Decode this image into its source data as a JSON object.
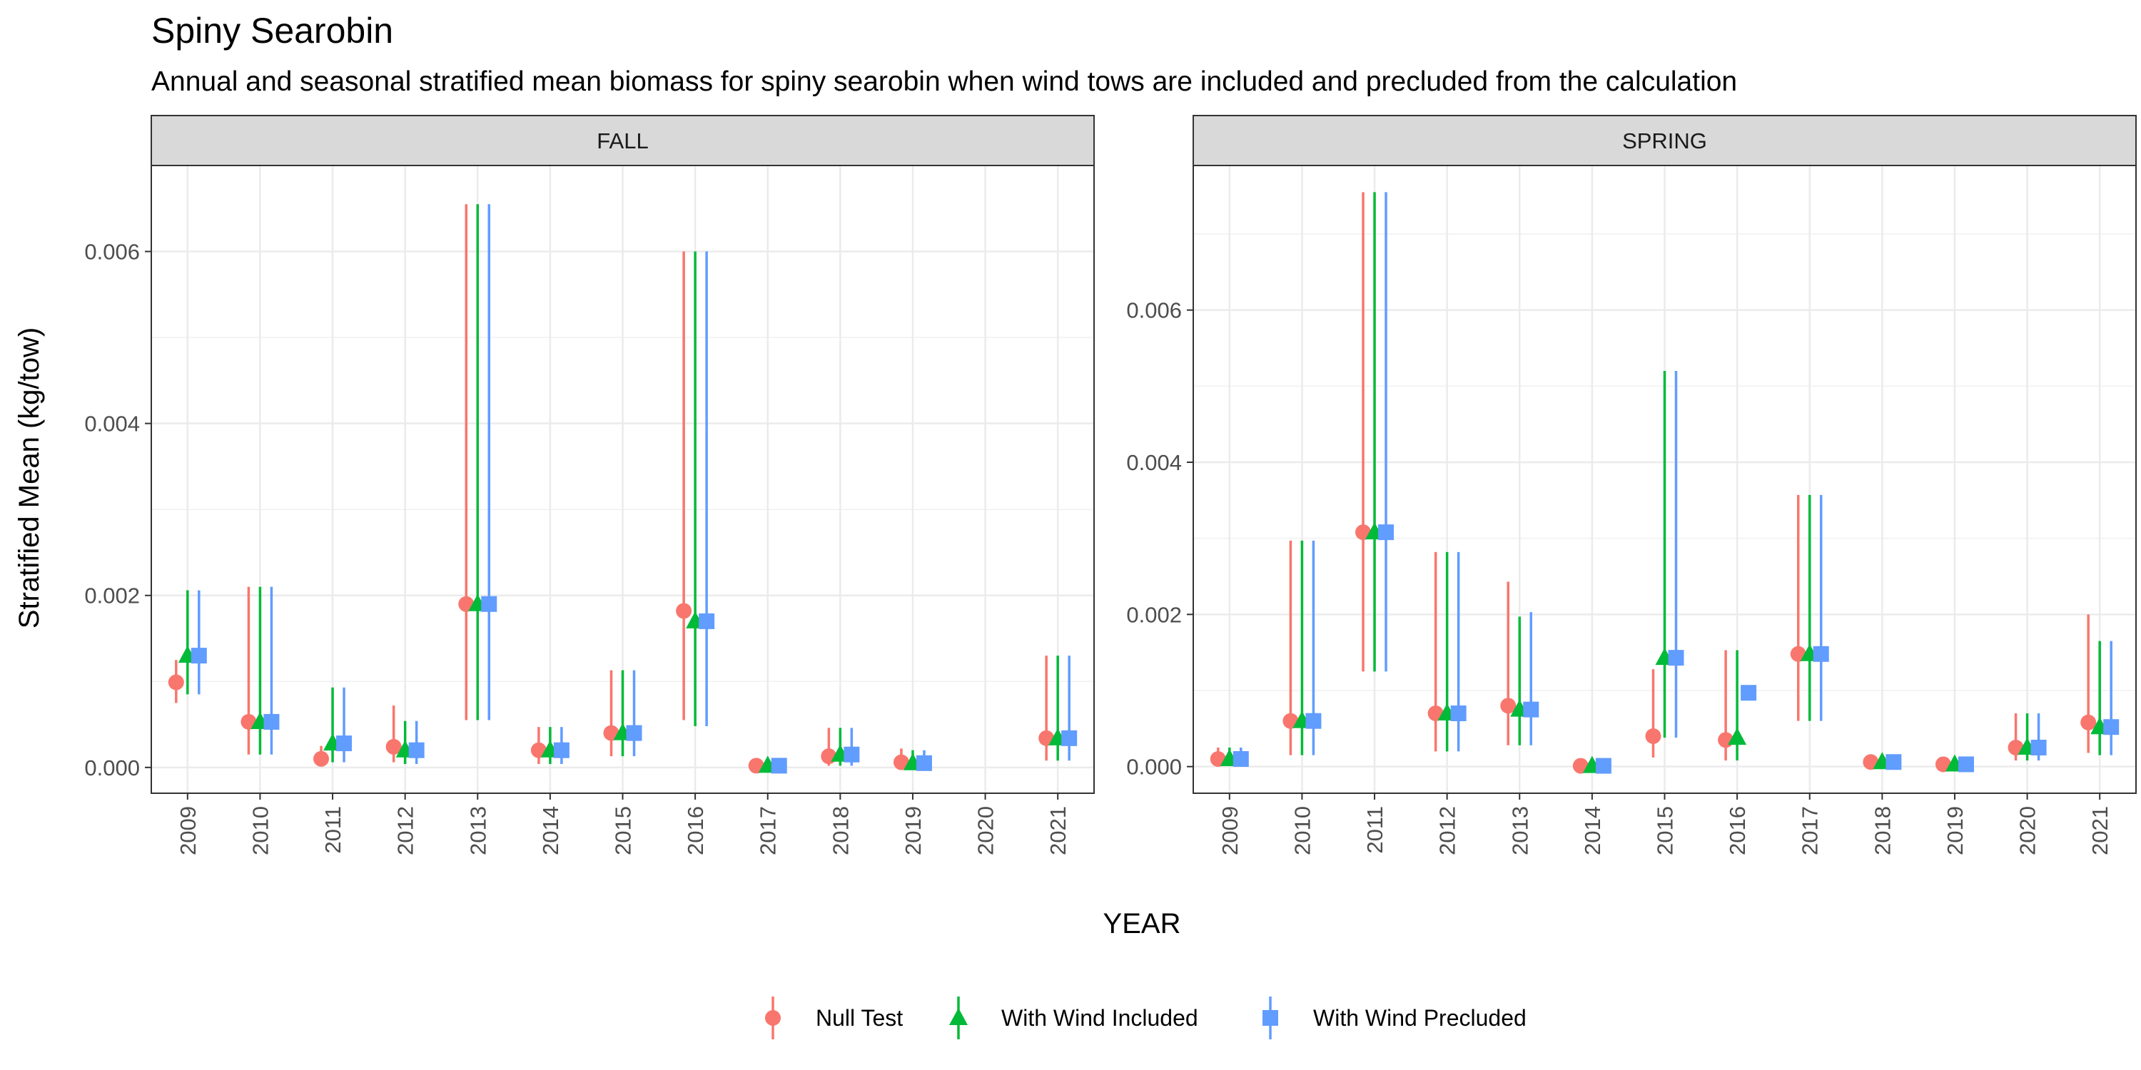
{
  "title": "Spiny Searobin",
  "subtitle": "Annual and seasonal stratified mean biomass for spiny searobin when wind tows are included and precluded from the calculation",
  "chart_data": {
    "type": "scatter",
    "title": "Spiny Searobin",
    "subtitle": "Annual and seasonal stratified mean biomass for spiny searobin when wind tows are included and precluded from the calculation",
    "xlabel": "YEAR",
    "ylabel": "Stratified Mean (kg/tow)",
    "legend": {
      "position": "bottom",
      "entries": [
        {
          "name": "Null Test",
          "color": "#f8766d",
          "shape": "circle"
        },
        {
          "name": "With Wind Included",
          "color": "#00ba38",
          "shape": "triangle"
        },
        {
          "name": "With Wind Precluded",
          "color": "#619cff",
          "shape": "square"
        }
      ]
    },
    "grid": true,
    "series_colors": [
      "#f8766d",
      "#00ba38",
      "#619cff"
    ],
    "panels": [
      {
        "label": "FALL",
        "ylim": [
          -0.0003,
          0.007
        ],
        "yticks": [
          0,
          0.002,
          0.004,
          0.006
        ],
        "ytick_labels": [
          "0.000",
          "0.002",
          "0.004",
          "0.006"
        ],
        "x": [
          "2009",
          "2010",
          "2011",
          "2012",
          "2013",
          "2014",
          "2015",
          "2016",
          "2017",
          "2018",
          "2019",
          "2020",
          "2021"
        ],
        "series": [
          {
            "name": "Null Test",
            "values": [
              0.00099,
              0.00053,
              0.0001,
              0.00024,
              0.0019,
              0.0002,
              0.0004,
              0.00182,
              2e-05,
              0.00013,
              6e-05,
              null,
              0.00034
            ],
            "lower": [
              0.00075,
              0.00015,
              1e-05,
              6e-05,
              0.00055,
              4e-05,
              0.00013,
              0.00055,
              0.0,
              2e-05,
              1e-05,
              null,
              8e-05
            ],
            "upper": [
              0.00125,
              0.0021,
              0.00025,
              0.00072,
              0.00655,
              0.00047,
              0.00113,
              0.006,
              8e-05,
              0.00046,
              0.00022,
              null,
              0.0013
            ]
          },
          {
            "name": "With Wind Included",
            "values": [
              0.0013,
              0.00053,
              0.00028,
              0.0002,
              0.0019,
              0.0002,
              0.0004,
              0.0017,
              2e-05,
              0.00015,
              5e-05,
              null,
              0.00034
            ],
            "lower": [
              0.00085,
              0.00015,
              6e-05,
              4e-05,
              0.00055,
              4e-05,
              0.00013,
              0.00048,
              0.0,
              2e-05,
              1e-05,
              null,
              8e-05
            ],
            "upper": [
              0.00206,
              0.0021,
              0.00093,
              0.00054,
              0.00655,
              0.00047,
              0.00113,
              0.006,
              8e-05,
              0.00046,
              0.0002,
              null,
              0.0013
            ]
          },
          {
            "name": "With Wind Precluded",
            "values": [
              0.0013,
              0.00053,
              0.00028,
              0.0002,
              0.0019,
              0.0002,
              0.0004,
              0.0017,
              2e-05,
              0.00015,
              5e-05,
              null,
              0.00034
            ],
            "lower": [
              0.00085,
              0.00015,
              6e-05,
              4e-05,
              0.00055,
              4e-05,
              0.00013,
              0.00048,
              0.0,
              2e-05,
              1e-05,
              null,
              8e-05
            ],
            "upper": [
              0.00206,
              0.0021,
              0.00093,
              0.00054,
              0.00655,
              0.00047,
              0.00113,
              0.006,
              8e-05,
              0.00046,
              0.0002,
              null,
              0.0013
            ]
          }
        ]
      },
      {
        "label": "SPRING",
        "ylim": [
          -0.00035,
          0.0079
        ],
        "yticks": [
          0,
          0.002,
          0.004,
          0.006
        ],
        "ytick_labels": [
          "0.000",
          "0.002",
          "0.004",
          "0.006"
        ],
        "x": [
          "2009",
          "2010",
          "2011",
          "2012",
          "2013",
          "2014",
          "2015",
          "2016",
          "2017",
          "2018",
          "2019",
          "2020",
          "2021"
        ],
        "series": [
          {
            "name": "Null Test",
            "values": [
              0.0001,
              0.0006,
              0.00308,
              0.0007,
              0.0008,
              1e-05,
              0.0004,
              0.00035,
              0.00148,
              6e-05,
              3e-05,
              0.00025,
              0.00058
            ],
            "lower": [
              2e-05,
              0.00015,
              0.00125,
              0.0002,
              0.00028,
              0.0,
              0.00012,
              8e-05,
              0.0006,
              1e-05,
              0.0,
              8e-05,
              0.00018
            ],
            "upper": [
              0.00025,
              0.00297,
              0.00755,
              0.00282,
              0.00243,
              5e-05,
              0.00128,
              0.00153,
              0.00357,
              0.00015,
              8e-05,
              0.0007,
              0.002
            ]
          },
          {
            "name": "With Wind Included",
            "values": [
              0.0001,
              0.0006,
              0.00308,
              0.0007,
              0.00075,
              1e-05,
              0.00143,
              0.00038,
              0.00148,
              6e-05,
              3e-05,
              0.00025,
              0.00052
            ],
            "lower": [
              2e-05,
              0.00015,
              0.00125,
              0.0002,
              0.00028,
              0.0,
              0.00038,
              8e-05,
              0.0006,
              1e-05,
              0.0,
              8e-05,
              0.00015
            ],
            "upper": [
              0.00025,
              0.00297,
              0.00755,
              0.00282,
              0.00197,
              5e-05,
              0.0052,
              0.00153,
              0.00357,
              0.00015,
              8e-05,
              0.0007,
              0.00165
            ]
          },
          {
            "name": "With Wind Precluded",
            "values": [
              0.0001,
              0.0006,
              0.00308,
              0.0007,
              0.00075,
              1e-05,
              0.00143,
              0.00097,
              0.00148,
              6e-05,
              3e-05,
              0.00025,
              0.00052
            ],
            "lower": [
              2e-05,
              0.00015,
              0.00125,
              0.0002,
              0.00028,
              0.0,
              0.00038,
              null,
              0.0006,
              1e-05,
              0.0,
              8e-05,
              0.00015
            ],
            "upper": [
              0.00025,
              0.00297,
              0.00755,
              0.00282,
              0.00203,
              5e-05,
              0.0052,
              null,
              0.00357,
              0.00015,
              8e-05,
              0.0007,
              0.00165
            ]
          }
        ]
      }
    ]
  }
}
